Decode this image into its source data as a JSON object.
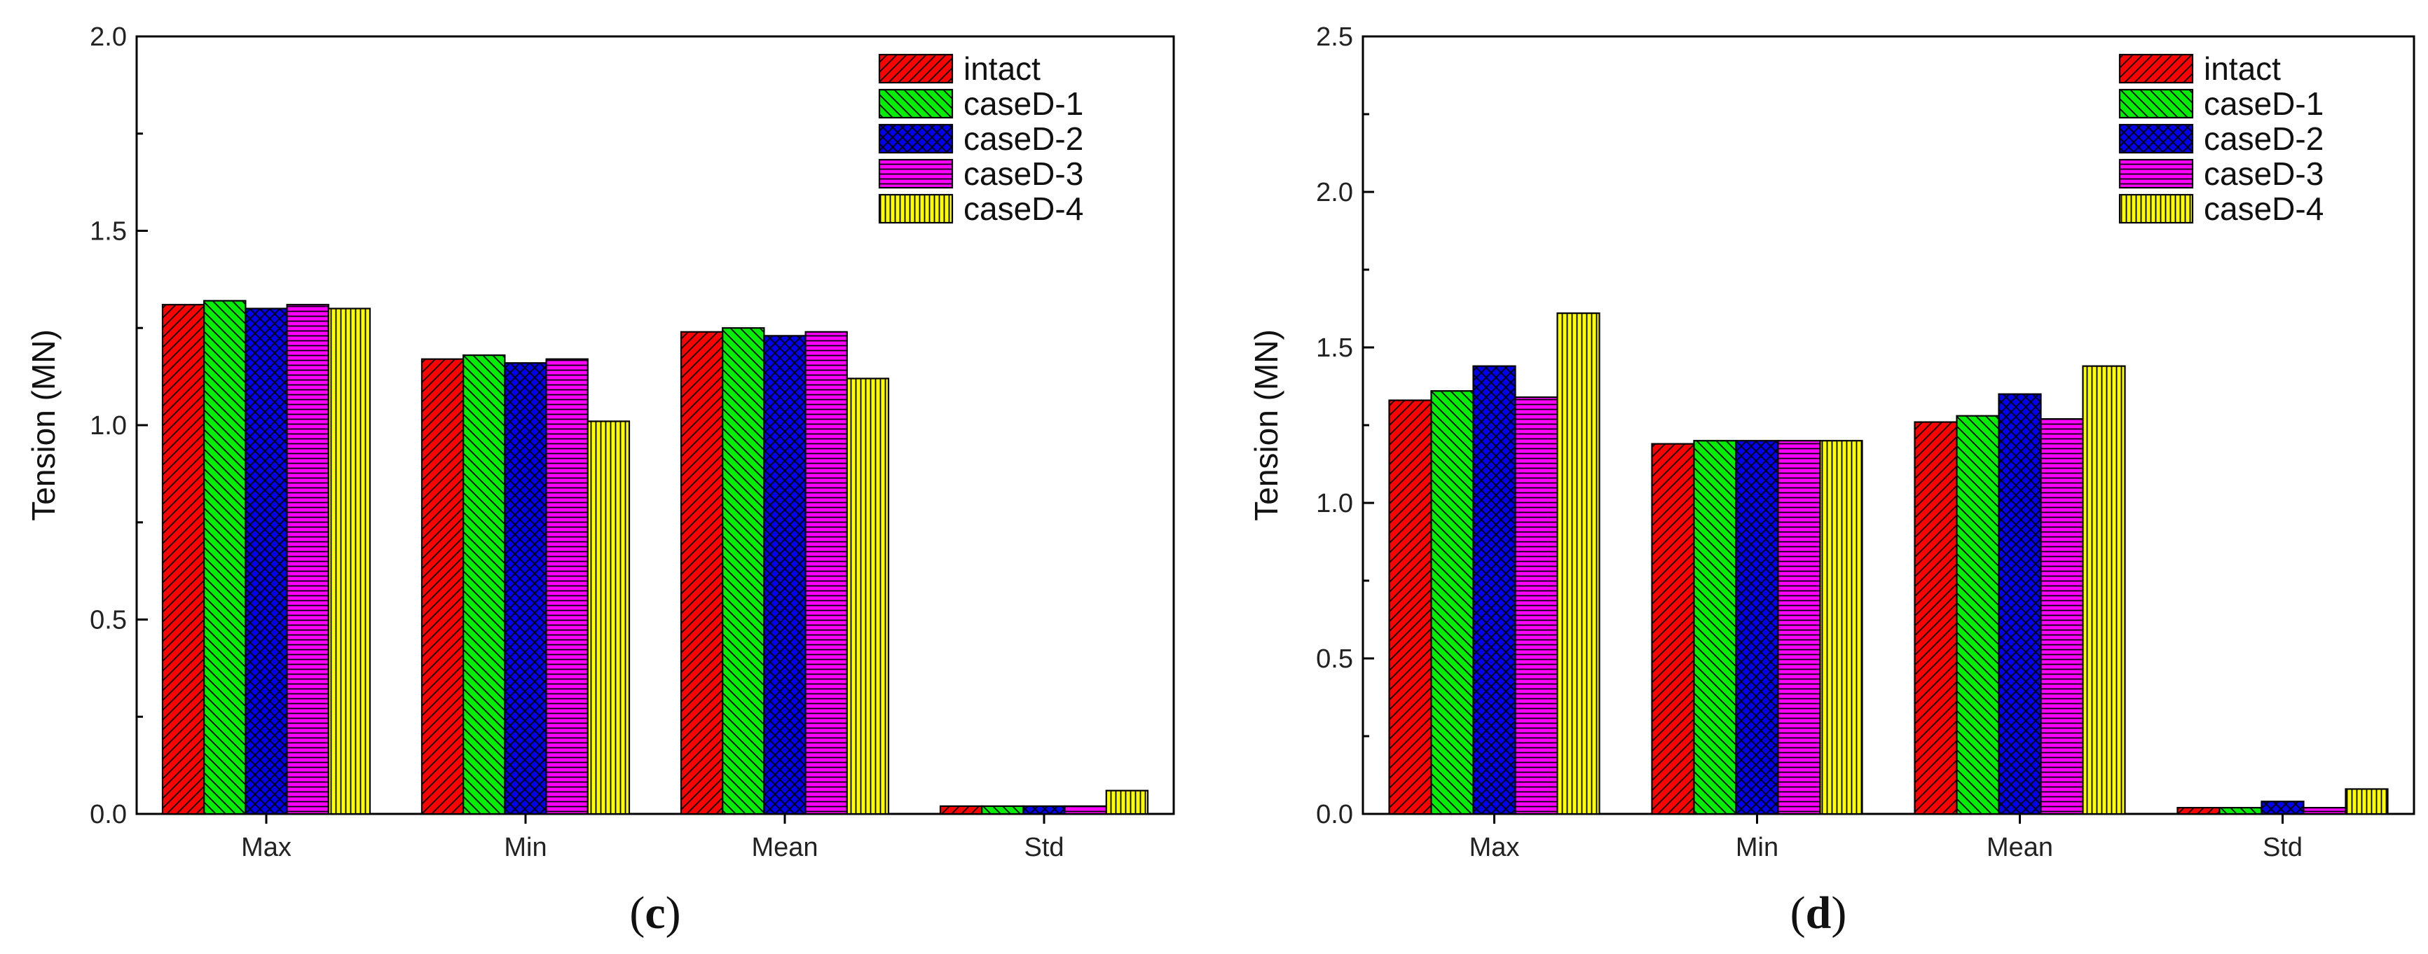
{
  "colors": {
    "intact": "#ff0000",
    "caseD-1": "#00ee00",
    "caseD-2": "#0000ee",
    "caseD-3": "#ff00ff",
    "caseD-4": "#ffff00"
  },
  "chart_data": [
    {
      "type": "bar",
      "panel_label": {
        "open": "(",
        "letter": "c",
        "close": ")"
      },
      "title": "",
      "xlabel": "",
      "ylabel": "Tension (MN)",
      "ylim": [
        0,
        2.0
      ],
      "yticks": [
        "0.0",
        "0.5",
        "1.0",
        "1.5",
        "2.0"
      ],
      "categories": [
        "Max",
        "Min",
        "Mean",
        "Std"
      ],
      "legend_position": "top-right",
      "series": [
        {
          "name": "intact",
          "pattern": "diag-right",
          "values": [
            1.31,
            1.17,
            1.24,
            0.02
          ]
        },
        {
          "name": "caseD-1",
          "pattern": "diag-left",
          "values": [
            1.32,
            1.18,
            1.25,
            0.02
          ]
        },
        {
          "name": "caseD-2",
          "pattern": "cross",
          "values": [
            1.3,
            1.16,
            1.23,
            0.02
          ]
        },
        {
          "name": "caseD-3",
          "pattern": "horizontal",
          "values": [
            1.31,
            1.17,
            1.24,
            0.02
          ]
        },
        {
          "name": "caseD-4",
          "pattern": "vertical",
          "values": [
            1.3,
            1.01,
            1.12,
            0.06
          ]
        }
      ]
    },
    {
      "type": "bar",
      "panel_label": {
        "open": "(",
        "letter": "d",
        "close": ")"
      },
      "title": "",
      "xlabel": "",
      "ylabel": "Tension (MN)",
      "ylim": [
        0,
        2.5
      ],
      "yticks": [
        "0.0",
        "0.5",
        "1.0",
        "1.5",
        "2.0",
        "2.5"
      ],
      "categories": [
        "Max",
        "Min",
        "Mean",
        "Std"
      ],
      "legend_position": "top-right",
      "series": [
        {
          "name": "intact",
          "pattern": "diag-right",
          "values": [
            1.33,
            1.19,
            1.26,
            0.02
          ]
        },
        {
          "name": "caseD-1",
          "pattern": "diag-left",
          "values": [
            1.36,
            1.2,
            1.28,
            0.02
          ]
        },
        {
          "name": "caseD-2",
          "pattern": "cross",
          "values": [
            1.44,
            1.2,
            1.35,
            0.04
          ]
        },
        {
          "name": "caseD-3",
          "pattern": "horizontal",
          "values": [
            1.34,
            1.2,
            1.27,
            0.02
          ]
        },
        {
          "name": "caseD-4",
          "pattern": "vertical",
          "values": [
            1.61,
            1.2,
            1.44,
            0.08
          ]
        }
      ]
    }
  ]
}
